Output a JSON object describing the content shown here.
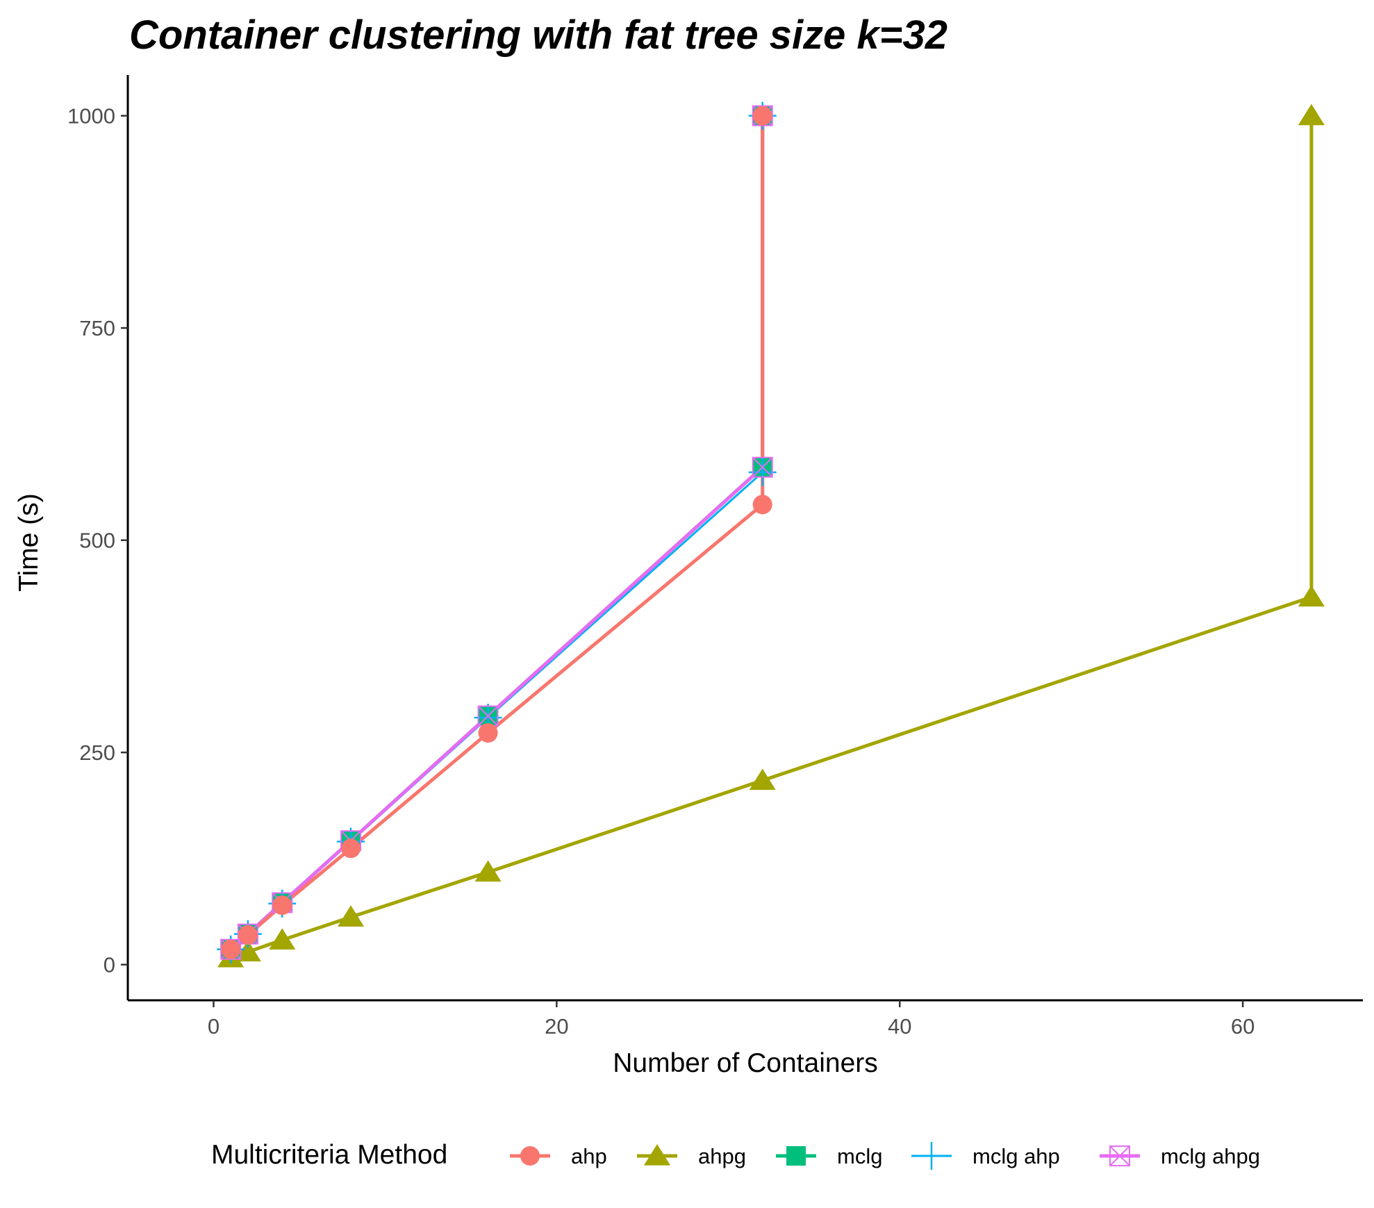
{
  "chart_data": {
    "type": "line",
    "title": "Container clustering with fat tree size k=32",
    "xlabel": "Number of Containers",
    "ylabel": "Time (s)",
    "xlim": [
      -5,
      67
    ],
    "ylim": [
      -42,
      1048
    ],
    "xticks": [
      0,
      20,
      40,
      60
    ],
    "yticks": [
      0,
      250,
      500,
      750,
      1000
    ],
    "grid": false,
    "legend": {
      "title": "Multicriteria Method",
      "position": "bottom"
    },
    "series": [
      {
        "name": "ahp",
        "color": "#F8766D",
        "marker": "circle",
        "points": [
          [
            1,
            18
          ],
          [
            2,
            35
          ],
          [
            4,
            70
          ],
          [
            8,
            137
          ],
          [
            16,
            273
          ],
          [
            32,
            542
          ],
          [
            32,
            1000
          ]
        ]
      },
      {
        "name": "ahpg",
        "color": "#A3A500",
        "marker": "triangle",
        "points": [
          [
            1,
            8
          ],
          [
            2,
            15
          ],
          [
            4,
            29
          ],
          [
            8,
            56
          ],
          [
            16,
            109
          ],
          [
            32,
            217
          ],
          [
            64,
            433
          ],
          [
            64,
            1000
          ]
        ]
      },
      {
        "name": "mclg",
        "color": "#00BF7D",
        "marker": "square",
        "points": [
          [
            1,
            18
          ],
          [
            2,
            36
          ],
          [
            4,
            73
          ],
          [
            8,
            146
          ],
          [
            16,
            293
          ],
          [
            32,
            586
          ],
          [
            32,
            1000
          ]
        ]
      },
      {
        "name": "mclg ahp",
        "color": "#00B0F6",
        "marker": "plus",
        "points": [
          [
            1,
            18
          ],
          [
            2,
            36
          ],
          [
            4,
            72
          ],
          [
            8,
            145
          ],
          [
            16,
            291
          ],
          [
            32,
            580
          ],
          [
            32,
            1000
          ]
        ]
      },
      {
        "name": "mclg ahpg",
        "color": "#E76BF3",
        "marker": "boxcross",
        "points": [
          [
            1,
            18
          ],
          [
            2,
            36
          ],
          [
            4,
            73
          ],
          [
            8,
            146
          ],
          [
            16,
            293
          ],
          [
            32,
            586
          ],
          [
            32,
            1000
          ]
        ]
      }
    ]
  }
}
